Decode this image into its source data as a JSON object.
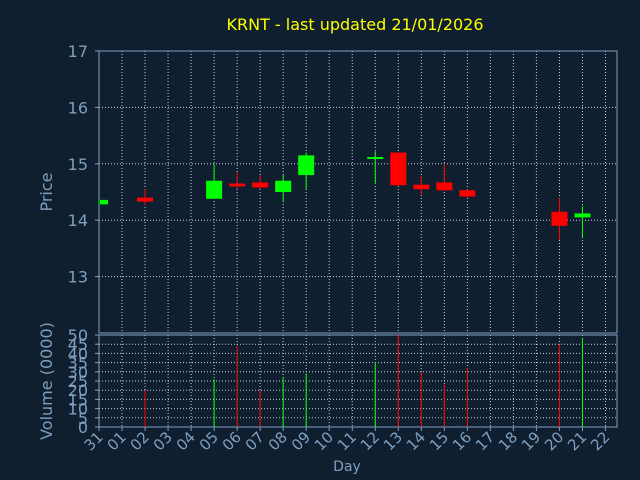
{
  "chart_data": {
    "type": "candlestick",
    "title": "KRNT - last updated 21/01/2026",
    "xlabel": "Day",
    "price_panel": {
      "ylabel": "Price",
      "ylim": [
        12.0,
        17.0
      ],
      "yticks": [
        "13",
        "14",
        "15",
        "16",
        "17"
      ],
      "grid": true
    },
    "volume_panel": {
      "ylabel": "Volume (0000)",
      "ylim": [
        0,
        50
      ],
      "yticks": [
        "0",
        "5",
        "10",
        "15",
        "20",
        "25",
        "30",
        "35",
        "40",
        "45",
        "50"
      ],
      "grid": true
    },
    "x_ticks": [
      "31",
      "01",
      "02",
      "03",
      "04",
      "05",
      "06",
      "07",
      "08",
      "09",
      "10",
      "11",
      "12",
      "13",
      "14",
      "15",
      "16",
      "17",
      "18",
      "19",
      "20",
      "21",
      "22"
    ],
    "candles": [
      {
        "day": "31",
        "open": 14.28,
        "high": 14.36,
        "low": 14.28,
        "close": 14.36,
        "volume": 0
      },
      {
        "day": "02",
        "open": 14.4,
        "high": 14.55,
        "low": 14.27,
        "close": 14.33,
        "volume": 20
      },
      {
        "day": "05",
        "open": 14.38,
        "high": 15.0,
        "low": 14.38,
        "close": 14.7,
        "volume": 26
      },
      {
        "day": "06",
        "open": 14.65,
        "high": 14.85,
        "low": 14.55,
        "close": 14.6,
        "volume": 44
      },
      {
        "day": "07",
        "open": 14.67,
        "high": 14.8,
        "low": 14.55,
        "close": 14.58,
        "volume": 20
      },
      {
        "day": "08",
        "open": 14.5,
        "high": 14.8,
        "low": 14.33,
        "close": 14.7,
        "volume": 27
      },
      {
        "day": "09",
        "open": 14.8,
        "high": 15.2,
        "low": 14.55,
        "close": 15.15,
        "volume": 29
      },
      {
        "day": "12",
        "open": 15.1,
        "high": 15.22,
        "low": 14.65,
        "close": 15.12,
        "volume": 35
      },
      {
        "day": "13",
        "open": 15.2,
        "high": 15.2,
        "low": 14.6,
        "close": 14.62,
        "volume": 50
      },
      {
        "day": "14",
        "open": 14.63,
        "high": 14.78,
        "low": 14.45,
        "close": 14.55,
        "volume": 30
      },
      {
        "day": "15",
        "open": 14.67,
        "high": 15.0,
        "low": 14.52,
        "close": 14.53,
        "volume": 23
      },
      {
        "day": "16",
        "open": 14.53,
        "high": 14.55,
        "low": 14.4,
        "close": 14.42,
        "volume": 32
      },
      {
        "day": "20",
        "open": 14.15,
        "high": 14.4,
        "low": 13.65,
        "close": 13.9,
        "volume": 45
      },
      {
        "day": "21",
        "open": 14.05,
        "high": 14.25,
        "low": 13.7,
        "close": 14.12,
        "volume": 48
      }
    ],
    "colors": {
      "background": "#0f1f30",
      "up": "#00ff00",
      "down": "#ff0000",
      "axis": "#7f9fbf",
      "title": "#ffff00",
      "grid": "#bfcfdf"
    }
  }
}
